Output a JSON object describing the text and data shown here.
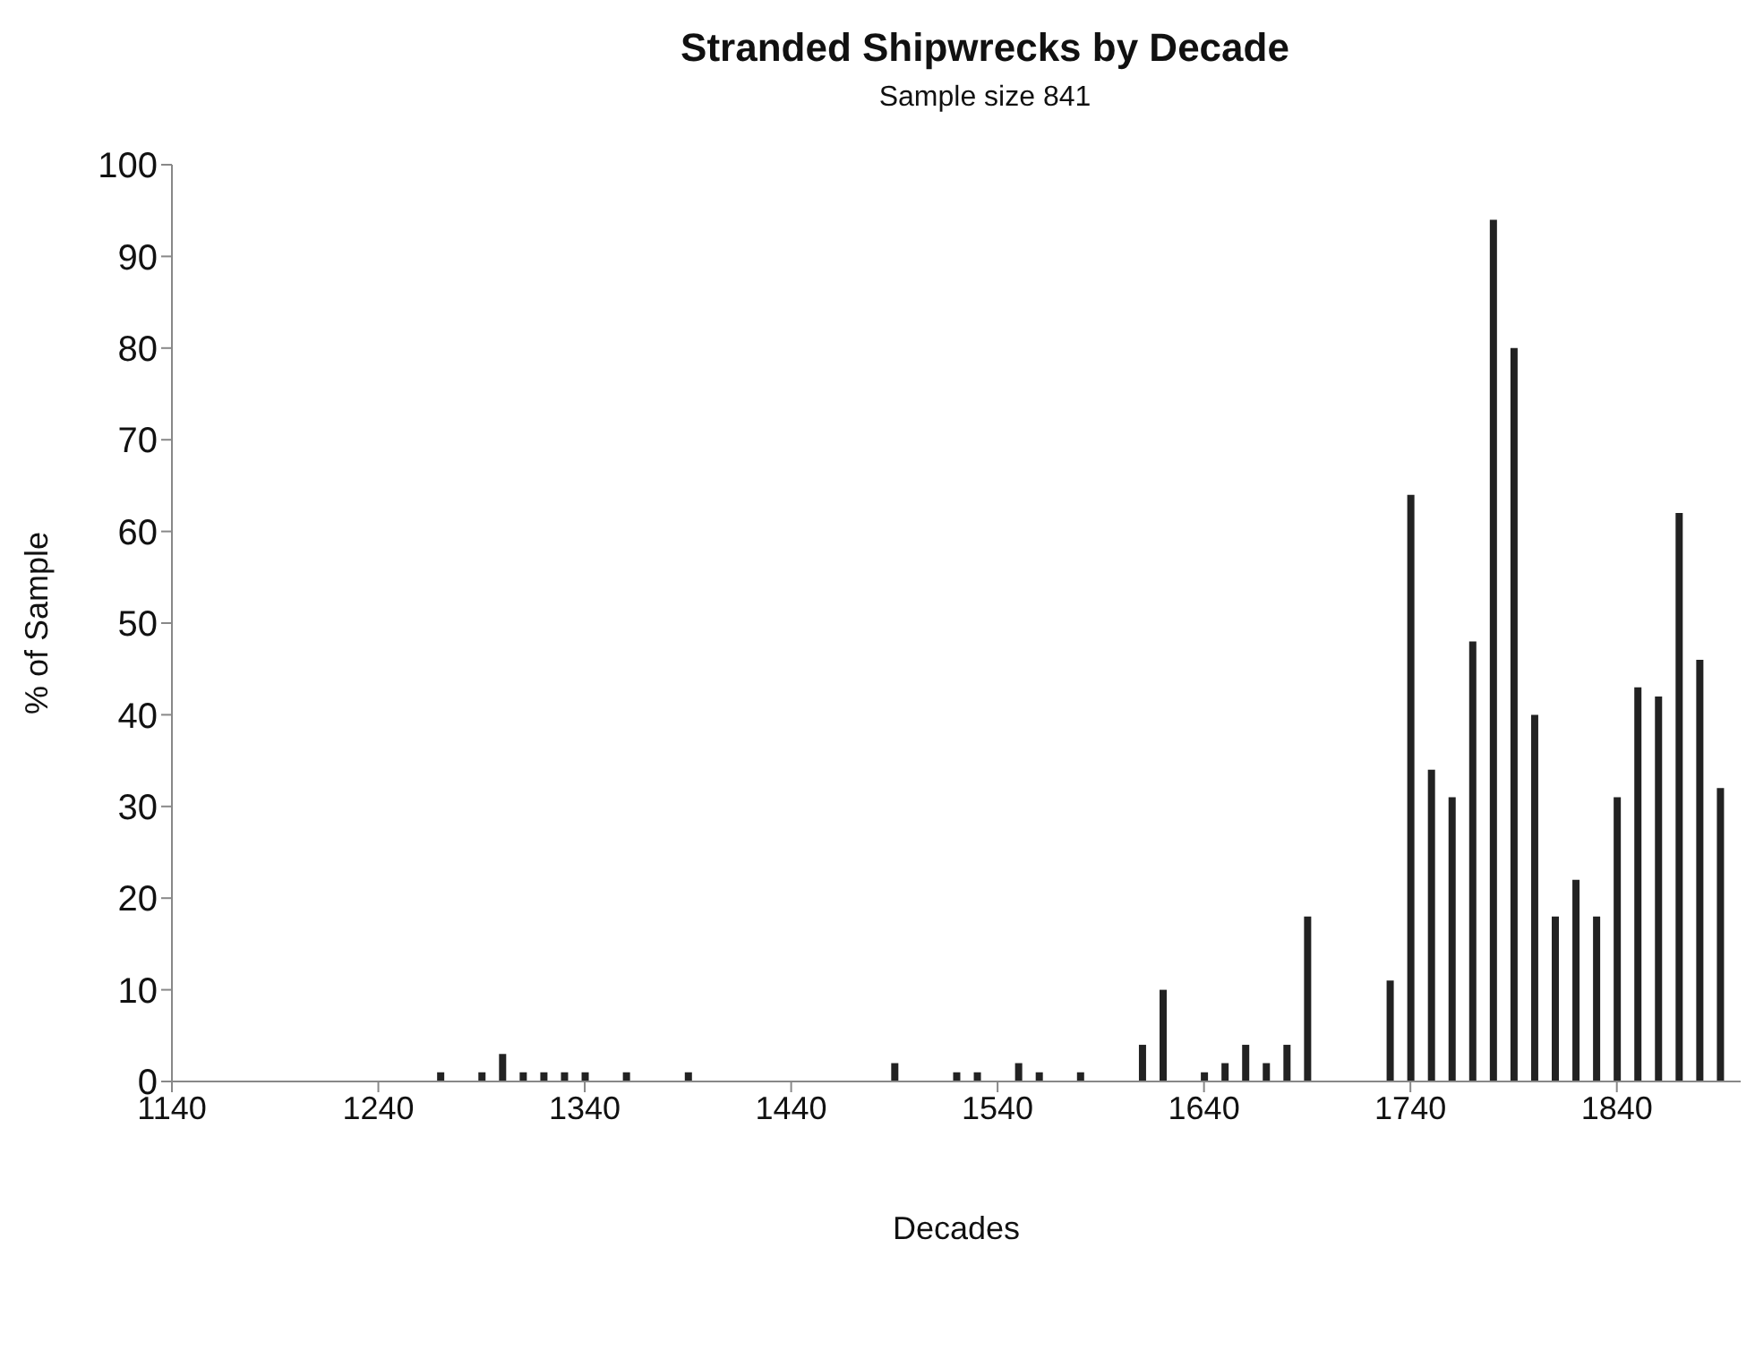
{
  "chart_data": {
    "type": "bar",
    "title": "Stranded Shipwrecks by Decade",
    "subtitle": "Sample size 841",
    "xlabel": "Decades",
    "ylabel": "% of Sample",
    "x": [
      1270,
      1290,
      1300,
      1310,
      1320,
      1330,
      1340,
      1360,
      1390,
      1490,
      1520,
      1530,
      1550,
      1560,
      1580,
      1610,
      1620,
      1640,
      1650,
      1660,
      1670,
      1680,
      1690,
      1730,
      1740,
      1750,
      1760,
      1770,
      1780,
      1790,
      1800,
      1810,
      1820,
      1830,
      1840,
      1850,
      1860,
      1870,
      1880,
      1890
    ],
    "values": [
      1,
      1,
      3,
      1,
      1,
      1,
      1,
      1,
      1,
      2,
      1,
      1,
      2,
      1,
      1,
      4,
      10,
      1,
      2,
      4,
      2,
      4,
      18,
      11,
      64,
      34,
      31,
      48,
      94,
      80,
      40,
      18,
      22,
      18,
      31,
      43,
      42,
      62,
      46,
      32
    ],
    "color": "#222222",
    "xlim": [
      1140,
      1900
    ],
    "xticks": [
      1140,
      1240,
      1340,
      1440,
      1540,
      1640,
      1740,
      1840
    ],
    "ylim": [
      0,
      100
    ],
    "yticks": [
      0,
      10,
      20,
      30,
      40,
      50,
      60,
      70,
      80,
      90,
      100
    ]
  }
}
